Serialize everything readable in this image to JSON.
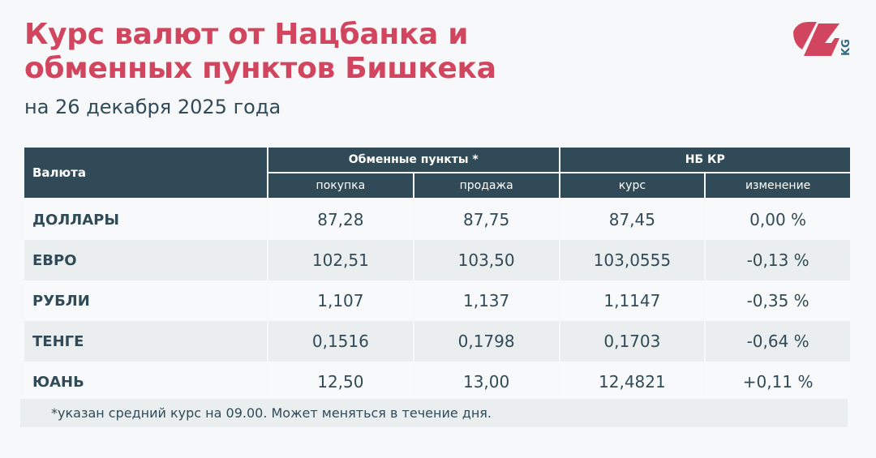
{
  "title_line1": "Курс валют от Нацбанка и",
  "title_line2": "обменных пунктов Бишкека",
  "subtitle": "на 26 декабря 2025 года",
  "logo": {
    "text": "24",
    "suffix": "KG",
    "color": "#d2455e",
    "suffix_color": "#2f6b82"
  },
  "colors": {
    "accent": "#d2455e",
    "header_bg": "#304b57"
  },
  "table": {
    "currency_header": "Валюта",
    "group_exchange": "Обменные пункты *",
    "group_nb": "НБ КР",
    "sub_headers": [
      "покупка",
      "продажа",
      "курс",
      "изменение"
    ],
    "rows": [
      {
        "name": "ДОЛЛАРЫ",
        "buy": "87,28",
        "sell": "87,75",
        "rate": "87,45",
        "change": "0,00 %"
      },
      {
        "name": "ЕВРО",
        "buy": "102,51",
        "sell": "103,50",
        "rate": "103,0555",
        "change": "-0,13 %"
      },
      {
        "name": "РУБЛИ",
        "buy": "1,107",
        "sell": "1,137",
        "rate": "1,1147",
        "change": "-0,35 %"
      },
      {
        "name": "ТЕНГЕ",
        "buy": "0,1516",
        "sell": "0,1798",
        "rate": "0,1703",
        "change": "-0,64 %"
      },
      {
        "name": "ЮАНЬ",
        "buy": "12,50",
        "sell": "13,00",
        "rate": "12,4821",
        "change": "+0,11 %"
      }
    ]
  },
  "footnote": "*указан средний курс на 09.00. Может меняться в течение дня."
}
